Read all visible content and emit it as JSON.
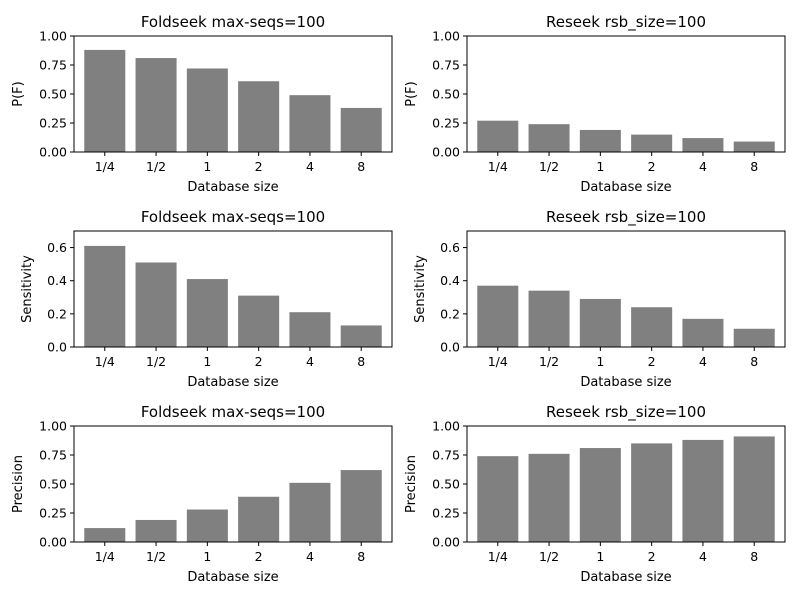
{
  "figure": {
    "background": "#ffffff",
    "bar_color": "#808080"
  },
  "chart_data": [
    {
      "type": "bar",
      "title": "Foldseek max-seqs=100",
      "xlabel": "Database size",
      "ylabel": "P(F)",
      "categories": [
        "1/4",
        "1/2",
        "1",
        "2",
        "4",
        "8"
      ],
      "values": [
        0.88,
        0.81,
        0.72,
        0.61,
        0.49,
        0.38
      ],
      "ylim": [
        0,
        1.0
      ],
      "yticks": [
        0.0,
        0.25,
        0.5,
        0.75,
        1.0
      ],
      "ytick_labels": [
        "0.00",
        "0.25",
        "0.50",
        "0.75",
        "1.00"
      ],
      "grid": false,
      "color": "#808080"
    },
    {
      "type": "bar",
      "title": "Reseek rsb_size=100",
      "xlabel": "Database size",
      "ylabel": "P(F)",
      "categories": [
        "1/4",
        "1/2",
        "1",
        "2",
        "4",
        "8"
      ],
      "values": [
        0.27,
        0.24,
        0.19,
        0.15,
        0.12,
        0.09
      ],
      "ylim": [
        0,
        1.0
      ],
      "yticks": [
        0.0,
        0.25,
        0.5,
        0.75,
        1.0
      ],
      "ytick_labels": [
        "0.00",
        "0.25",
        "0.50",
        "0.75",
        "1.00"
      ],
      "grid": false,
      "color": "#808080"
    },
    {
      "type": "bar",
      "title": "Foldseek max-seqs=100",
      "xlabel": "Database size",
      "ylabel": "Sensitivity",
      "categories": [
        "1/4",
        "1/2",
        "1",
        "2",
        "4",
        "8"
      ],
      "values": [
        0.61,
        0.51,
        0.41,
        0.31,
        0.21,
        0.13
      ],
      "ylim": [
        0,
        0.7
      ],
      "yticks": [
        0.0,
        0.2,
        0.4,
        0.6
      ],
      "ytick_labels": [
        "0.0",
        "0.2",
        "0.4",
        "0.6"
      ],
      "grid": false,
      "color": "#808080"
    },
    {
      "type": "bar",
      "title": "Reseek rsb_size=100",
      "xlabel": "Database size",
      "ylabel": "Sensitivity",
      "categories": [
        "1/4",
        "1/2",
        "1",
        "2",
        "4",
        "8"
      ],
      "values": [
        0.37,
        0.34,
        0.29,
        0.24,
        0.17,
        0.11
      ],
      "ylim": [
        0,
        0.7
      ],
      "yticks": [
        0.0,
        0.2,
        0.4,
        0.6
      ],
      "ytick_labels": [
        "0.0",
        "0.2",
        "0.4",
        "0.6"
      ],
      "grid": false,
      "color": "#808080"
    },
    {
      "type": "bar",
      "title": "Foldseek max-seqs=100",
      "xlabel": "Database size",
      "ylabel": "Precision",
      "categories": [
        "1/4",
        "1/2",
        "1",
        "2",
        "4",
        "8"
      ],
      "values": [
        0.12,
        0.19,
        0.28,
        0.39,
        0.51,
        0.62
      ],
      "ylim": [
        0,
        1.0
      ],
      "yticks": [
        0.0,
        0.25,
        0.5,
        0.75,
        1.0
      ],
      "ytick_labels": [
        "0.00",
        "0.25",
        "0.50",
        "0.75",
        "1.00"
      ],
      "grid": false,
      "color": "#808080"
    },
    {
      "type": "bar",
      "title": "Reseek rsb_size=100",
      "xlabel": "Database size",
      "ylabel": "Precision",
      "categories": [
        "1/4",
        "1/2",
        "1",
        "2",
        "4",
        "8"
      ],
      "values": [
        0.74,
        0.76,
        0.81,
        0.85,
        0.88,
        0.91
      ],
      "ylim": [
        0,
        1.0
      ],
      "yticks": [
        0.0,
        0.25,
        0.5,
        0.75,
        1.0
      ],
      "ytick_labels": [
        "0.00",
        "0.25",
        "0.50",
        "0.75",
        "1.00"
      ],
      "grid": false,
      "color": "#808080"
    }
  ]
}
